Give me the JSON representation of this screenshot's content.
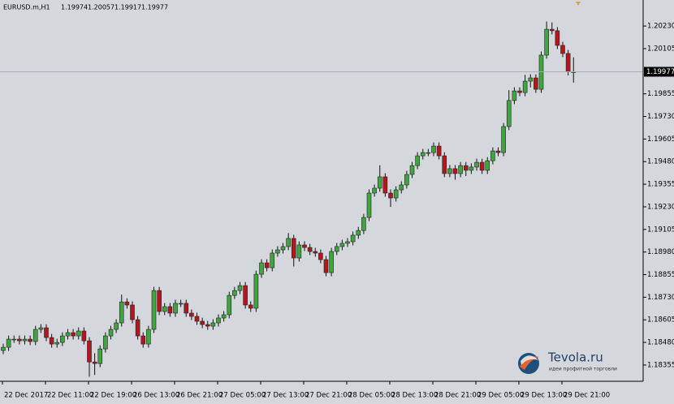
{
  "chart_data": {
    "type": "candlestick",
    "title": "EURUSD.m,H1",
    "categories": [
      "22 Dec 2017",
      null,
      null,
      null,
      null,
      null,
      null,
      null,
      "22 Dec 11:00",
      null,
      null,
      null,
      null,
      null,
      null,
      null,
      "22 Dec 19:00",
      null,
      null,
      null,
      null,
      null,
      null,
      null,
      "26 Dec 13:00",
      null,
      null,
      null,
      null,
      null,
      null,
      null,
      "26 Dec 21:00",
      null,
      null,
      null,
      null,
      null,
      null,
      null,
      "27 Dec 05:00",
      null,
      null,
      null,
      null,
      null,
      null,
      null,
      "27 Dec 13:00",
      null,
      null,
      null,
      null,
      null,
      null,
      null,
      "27 Dec 21:00",
      null,
      null,
      null,
      null,
      null,
      null,
      null,
      "28 Dec 05:00",
      null,
      null,
      null,
      null,
      null,
      null,
      null,
      "28 Dec 13:00",
      null,
      null,
      null,
      null,
      null,
      null,
      null,
      "28 Dec 21:00",
      null,
      null,
      null,
      null,
      null,
      null,
      null,
      "29 Dec 05:00",
      null,
      null,
      null,
      null,
      null,
      null,
      null,
      "29 Dec 13:00",
      null,
      null,
      null,
      null,
      null,
      null,
      null,
      "29 Dec 21:00",
      null,
      null
    ],
    "open": [
      1.18435,
      1.18453,
      1.18498,
      1.18498,
      1.18489,
      1.18498,
      1.18485,
      1.18552,
      1.18561,
      1.18507,
      1.18471,
      1.1848,
      1.18516,
      1.18534,
      1.18516,
      1.18543,
      1.18489,
      1.18372,
      1.18363,
      1.18444,
      1.18516,
      1.18552,
      1.18588,
      1.18704,
      1.18687,
      1.18606,
      1.18516,
      1.18471,
      1.18552,
      1.18767,
      1.18651,
      1.18678,
      1.18642,
      1.18696,
      1.18696,
      1.18642,
      1.18624,
      1.18597,
      1.18579,
      1.1857,
      1.18588,
      1.18615,
      1.18633,
      1.1874,
      1.18767,
      1.18794,
      1.18687,
      1.18669,
      1.18857,
      1.1892,
      1.18893,
      1.18974,
      1.18992,
      1.1901,
      1.19055,
      1.18947,
      1.19019,
      1.19005,
      1.18983,
      1.18974,
      1.18938,
      1.18866,
      1.18983,
      1.1901,
      1.19028,
      1.19037,
      1.19073,
      1.19099,
      1.19171,
      1.19306,
      1.19333,
      1.19396,
      1.19306,
      1.19279,
      1.19324,
      1.19351,
      1.19409,
      1.19458,
      1.19512,
      1.1953,
      1.1953,
      1.19566,
      1.19512,
      1.19414,
      1.19441,
      1.19414,
      1.19458,
      1.19432,
      1.1945,
      1.19476,
      1.19432,
      1.19485,
      1.19539,
      1.1953,
      1.19674,
      1.19818,
      1.19871,
      1.19862,
      1.19925,
      1.19943,
      1.1988,
      1.20069,
      1.20212,
      1.20204,
      1.20123,
      1.20078,
      1.19974
    ],
    "high": [
      1.18473,
      1.18518,
      1.18518,
      1.18518,
      1.18518,
      1.18518,
      1.18572,
      1.18581,
      1.18581,
      1.18527,
      1.185,
      1.18536,
      1.18554,
      1.18554,
      1.18563,
      1.18563,
      1.18509,
      1.1842,
      1.18464,
      1.18536,
      1.18572,
      1.18608,
      1.18745,
      1.18724,
      1.18707,
      1.18626,
      1.18536,
      1.18572,
      1.18787,
      1.18787,
      1.18698,
      1.18698,
      1.18716,
      1.18716,
      1.18716,
      1.18662,
      1.18644,
      1.18617,
      1.18599,
      1.18608,
      1.18635,
      1.18653,
      1.1876,
      1.18787,
      1.18814,
      1.18814,
      1.18707,
      1.18877,
      1.1894,
      1.1894,
      1.18994,
      1.19012,
      1.1903,
      1.19085,
      1.19075,
      1.19039,
      1.19039,
      1.19025,
      1.19003,
      1.18994,
      1.18958,
      1.19003,
      1.1903,
      1.19048,
      1.19057,
      1.19093,
      1.19119,
      1.19191,
      1.19326,
      1.19353,
      1.1946,
      1.19416,
      1.19326,
      1.19344,
      1.19371,
      1.19429,
      1.19478,
      1.19532,
      1.1955,
      1.1955,
      1.19586,
      1.19586,
      1.19532,
      1.19461,
      1.19461,
      1.19478,
      1.19478,
      1.1947,
      1.19496,
      1.19496,
      1.19505,
      1.19559,
      1.19559,
      1.19694,
      1.19875,
      1.19891,
      1.19891,
      1.1996,
      1.19963,
      1.19963,
      1.20089,
      1.20255,
      1.2025,
      1.20224,
      1.20143,
      1.20098,
      1.20057
    ],
    "low": [
      1.18415,
      1.18433,
      1.18478,
      1.18469,
      1.18469,
      1.18465,
      1.18465,
      1.18532,
      1.18487,
      1.18451,
      1.18451,
      1.1846,
      1.18496,
      1.18496,
      1.18496,
      1.18469,
      1.1829,
      1.183,
      1.18343,
      1.18424,
      1.18496,
      1.18532,
      1.18568,
      1.18667,
      1.18586,
      1.18496,
      1.18451,
      1.18451,
      1.18532,
      1.18631,
      1.18631,
      1.18622,
      1.18622,
      1.18676,
      1.18622,
      1.18604,
      1.18577,
      1.18559,
      1.1855,
      1.1855,
      1.18568,
      1.18595,
      1.18613,
      1.1872,
      1.18747,
      1.18667,
      1.18649,
      1.18649,
      1.18837,
      1.18873,
      1.18873,
      1.18954,
      1.18972,
      1.1899,
      1.189,
      1.18927,
      1.18985,
      1.18963,
      1.18954,
      1.18918,
      1.18846,
      1.18846,
      1.18963,
      1.1899,
      1.19008,
      1.19017,
      1.19053,
      1.19079,
      1.19151,
      1.19286,
      1.19313,
      1.19286,
      1.1923,
      1.19259,
      1.19304,
      1.19331,
      1.19389,
      1.19438,
      1.19492,
      1.1951,
      1.1951,
      1.19492,
      1.19394,
      1.19394,
      1.1938,
      1.19394,
      1.194,
      1.19412,
      1.1943,
      1.19412,
      1.19412,
      1.19465,
      1.1951,
      1.1951,
      1.19654,
      1.19798,
      1.19842,
      1.19842,
      1.1989,
      1.1986,
      1.1986,
      1.20049,
      1.20184,
      1.20103,
      1.20058,
      1.19957,
      1.19917
    ],
    "close": [
      1.18453,
      1.18498,
      1.18498,
      1.18489,
      1.18498,
      1.18485,
      1.18552,
      1.18561,
      1.18507,
      1.18471,
      1.1848,
      1.18516,
      1.18534,
      1.18516,
      1.18543,
      1.18489,
      1.18372,
      1.18363,
      1.18444,
      1.18516,
      1.18552,
      1.18588,
      1.18704,
      1.18687,
      1.18606,
      1.18516,
      1.18471,
      1.18552,
      1.18767,
      1.18651,
      1.18678,
      1.18642,
      1.18696,
      1.18696,
      1.18642,
      1.18624,
      1.18597,
      1.18579,
      1.1857,
      1.18588,
      1.18615,
      1.18633,
      1.1874,
      1.18767,
      1.18794,
      1.18687,
      1.18669,
      1.18857,
      1.1892,
      1.18893,
      1.18974,
      1.18992,
      1.1901,
      1.19055,
      1.18947,
      1.19019,
      1.19005,
      1.18983,
      1.18974,
      1.18938,
      1.18866,
      1.18983,
      1.1901,
      1.19028,
      1.19037,
      1.19073,
      1.19099,
      1.19171,
      1.19306,
      1.19333,
      1.19396,
      1.19306,
      1.19279,
      1.19324,
      1.19351,
      1.19409,
      1.19458,
      1.19512,
      1.1953,
      1.1953,
      1.19566,
      1.19512,
      1.19414,
      1.19441,
      1.19414,
      1.19458,
      1.19432,
      1.1945,
      1.19476,
      1.19432,
      1.19485,
      1.19539,
      1.1953,
      1.19674,
      1.19818,
      1.19871,
      1.19862,
      1.19925,
      1.19943,
      1.1988,
      1.20069,
      1.20212,
      1.20204,
      1.20123,
      1.20078,
      1.19977,
      1.19977
    ],
    "up_color": "#3fa63f",
    "down_color": "#b5161d",
    "ylim": [
      1.18265,
      1.20374
    ],
    "yticks": [
      {
        "value": 1.2023,
        "label": "1.20230"
      },
      {
        "value": 1.20105,
        "label": "1.20105"
      },
      {
        "value": 1.19855,
        "label": "1.19855"
      },
      {
        "value": 1.1973,
        "label": "1.19730"
      },
      {
        "value": 1.19605,
        "label": "1.19605"
      },
      {
        "value": 1.1948,
        "label": "1.19480"
      },
      {
        "value": 1.19355,
        "label": "1.19355"
      },
      {
        "value": 1.1923,
        "label": "1.19230"
      },
      {
        "value": 1.19105,
        "label": "1.19105"
      },
      {
        "value": 1.1898,
        "label": "1.18980"
      },
      {
        "value": 1.18855,
        "label": "1.18855"
      },
      {
        "value": 1.1873,
        "label": "1.18730"
      },
      {
        "value": 1.18605,
        "label": "1.18605"
      },
      {
        "value": 1.1848,
        "label": "1.18480"
      },
      {
        "value": 1.18355,
        "label": "1.18355"
      }
    ],
    "grid": false
  },
  "watermark": {
    "title": "Tevola.ru",
    "subtitle": "идеи профитной торговли"
  }
}
